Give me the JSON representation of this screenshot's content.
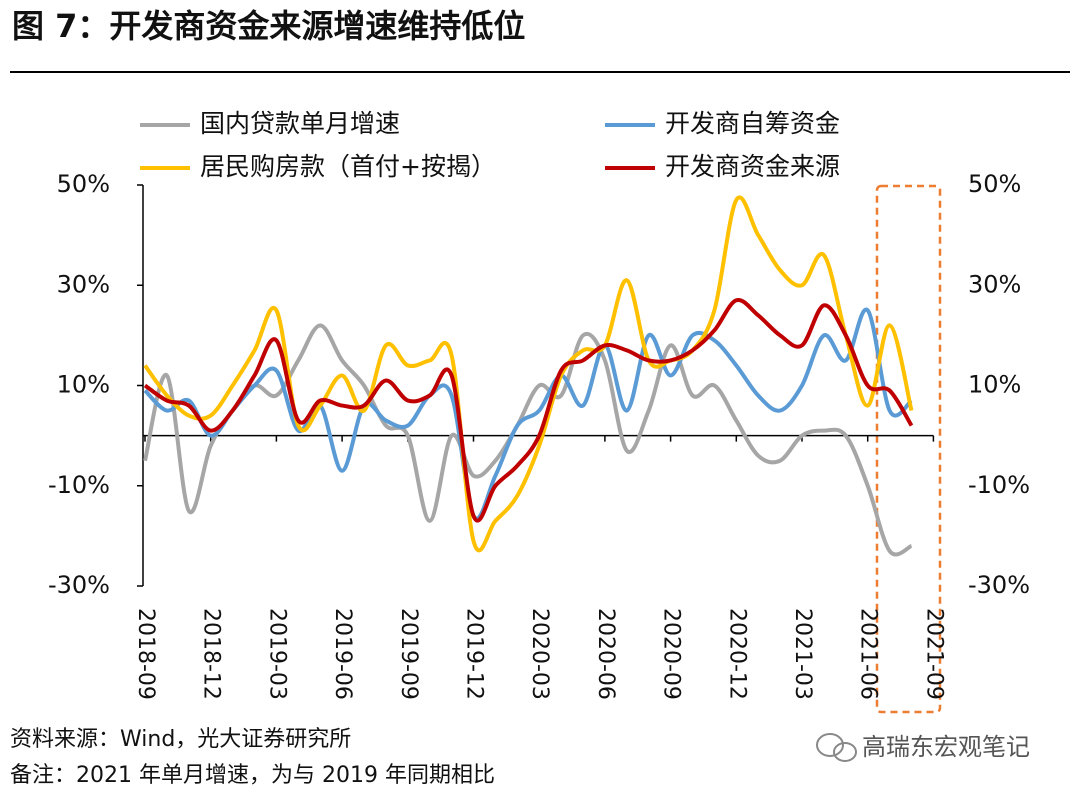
{
  "chart_data": {
    "type": "line",
    "title": "图 7：开发商资金来源增速维持低位",
    "categories": [
      "2018-09",
      null,
      null,
      "2018-12",
      null,
      null,
      "2019-03",
      null,
      null,
      "2019-06",
      null,
      null,
      "2019-09",
      null,
      null,
      "2019-12",
      null,
      null,
      "2020-03",
      null,
      null,
      "2020-06",
      null,
      null,
      "2020-09",
      null,
      null,
      "2020-12",
      null,
      null,
      "2021-03",
      null,
      null,
      "2021-06",
      null,
      null,
      "2021-09"
    ],
    "series": [
      {
        "name": "国内贷款单月增速",
        "color": "#a6a6a6",
        "values": [
          -5,
          12,
          -15,
          -2,
          5,
          10,
          8,
          15,
          22,
          15,
          10,
          2,
          0,
          -17,
          0,
          -8,
          -5,
          2,
          10,
          8,
          20,
          15,
          -3,
          5,
          18,
          8,
          10,
          3,
          -4,
          -5,
          0,
          1,
          0,
          -10,
          -23,
          -22,
          null
        ]
      },
      {
        "name": "开发商自筹资金",
        "color": "#5b9bd5",
        "values": [
          9,
          5,
          7,
          0,
          5,
          10,
          13,
          1,
          6,
          -7,
          6,
          3,
          2,
          8,
          8,
          -16,
          -8,
          2,
          5,
          12,
          6,
          18,
          5,
          20,
          12,
          20,
          19,
          14,
          8,
          5,
          10,
          20,
          15,
          25,
          5,
          7,
          null
        ]
      },
      {
        "name": "居民购房款（首付+按揭）",
        "color": "#ffc000",
        "values": [
          14,
          8,
          4,
          4,
          10,
          17,
          25,
          2,
          6,
          12,
          5,
          18,
          14,
          15,
          16,
          -21,
          -17,
          -12,
          -2,
          12,
          17,
          18,
          31,
          15,
          15,
          17,
          25,
          47,
          40,
          33,
          30,
          36,
          20,
          6,
          22,
          5,
          null
        ]
      },
      {
        "name": "开发商资金来源",
        "color": "#c00000",
        "values": [
          10,
          7,
          6,
          1,
          5,
          12,
          19,
          3,
          7,
          6,
          6,
          11,
          7,
          8,
          12,
          -16,
          -10,
          -6,
          0,
          13,
          15,
          18,
          17,
          15,
          15,
          17,
          21,
          27,
          24,
          20,
          18,
          26,
          20,
          10,
          9,
          2,
          null
        ]
      }
    ],
    "ylim": [
      -30,
      50
    ],
    "yticks": [
      {
        "value": 50,
        "label": "50%"
      },
      {
        "value": 30,
        "label": "30%"
      },
      {
        "value": 10,
        "label": "10%"
      },
      {
        "value": -10,
        "label": "-10%"
      },
      {
        "value": -30,
        "label": "-30%"
      }
    ],
    "y2lim": [
      -30,
      50
    ],
    "y2ticks": [
      {
        "value": 50,
        "label": "50%"
      },
      {
        "value": 30,
        "label": "30%"
      },
      {
        "value": 10,
        "label": "10%"
      },
      {
        "value": -10,
        "label": "-10%"
      },
      {
        "value": -30,
        "label": "-30%"
      }
    ],
    "source": "资料来源：Wind，光大证券研究所",
    "note": "备注：2021 年单月增速，为与 2019 年同期相比",
    "watermark": "高瑞东宏观笔记"
  }
}
